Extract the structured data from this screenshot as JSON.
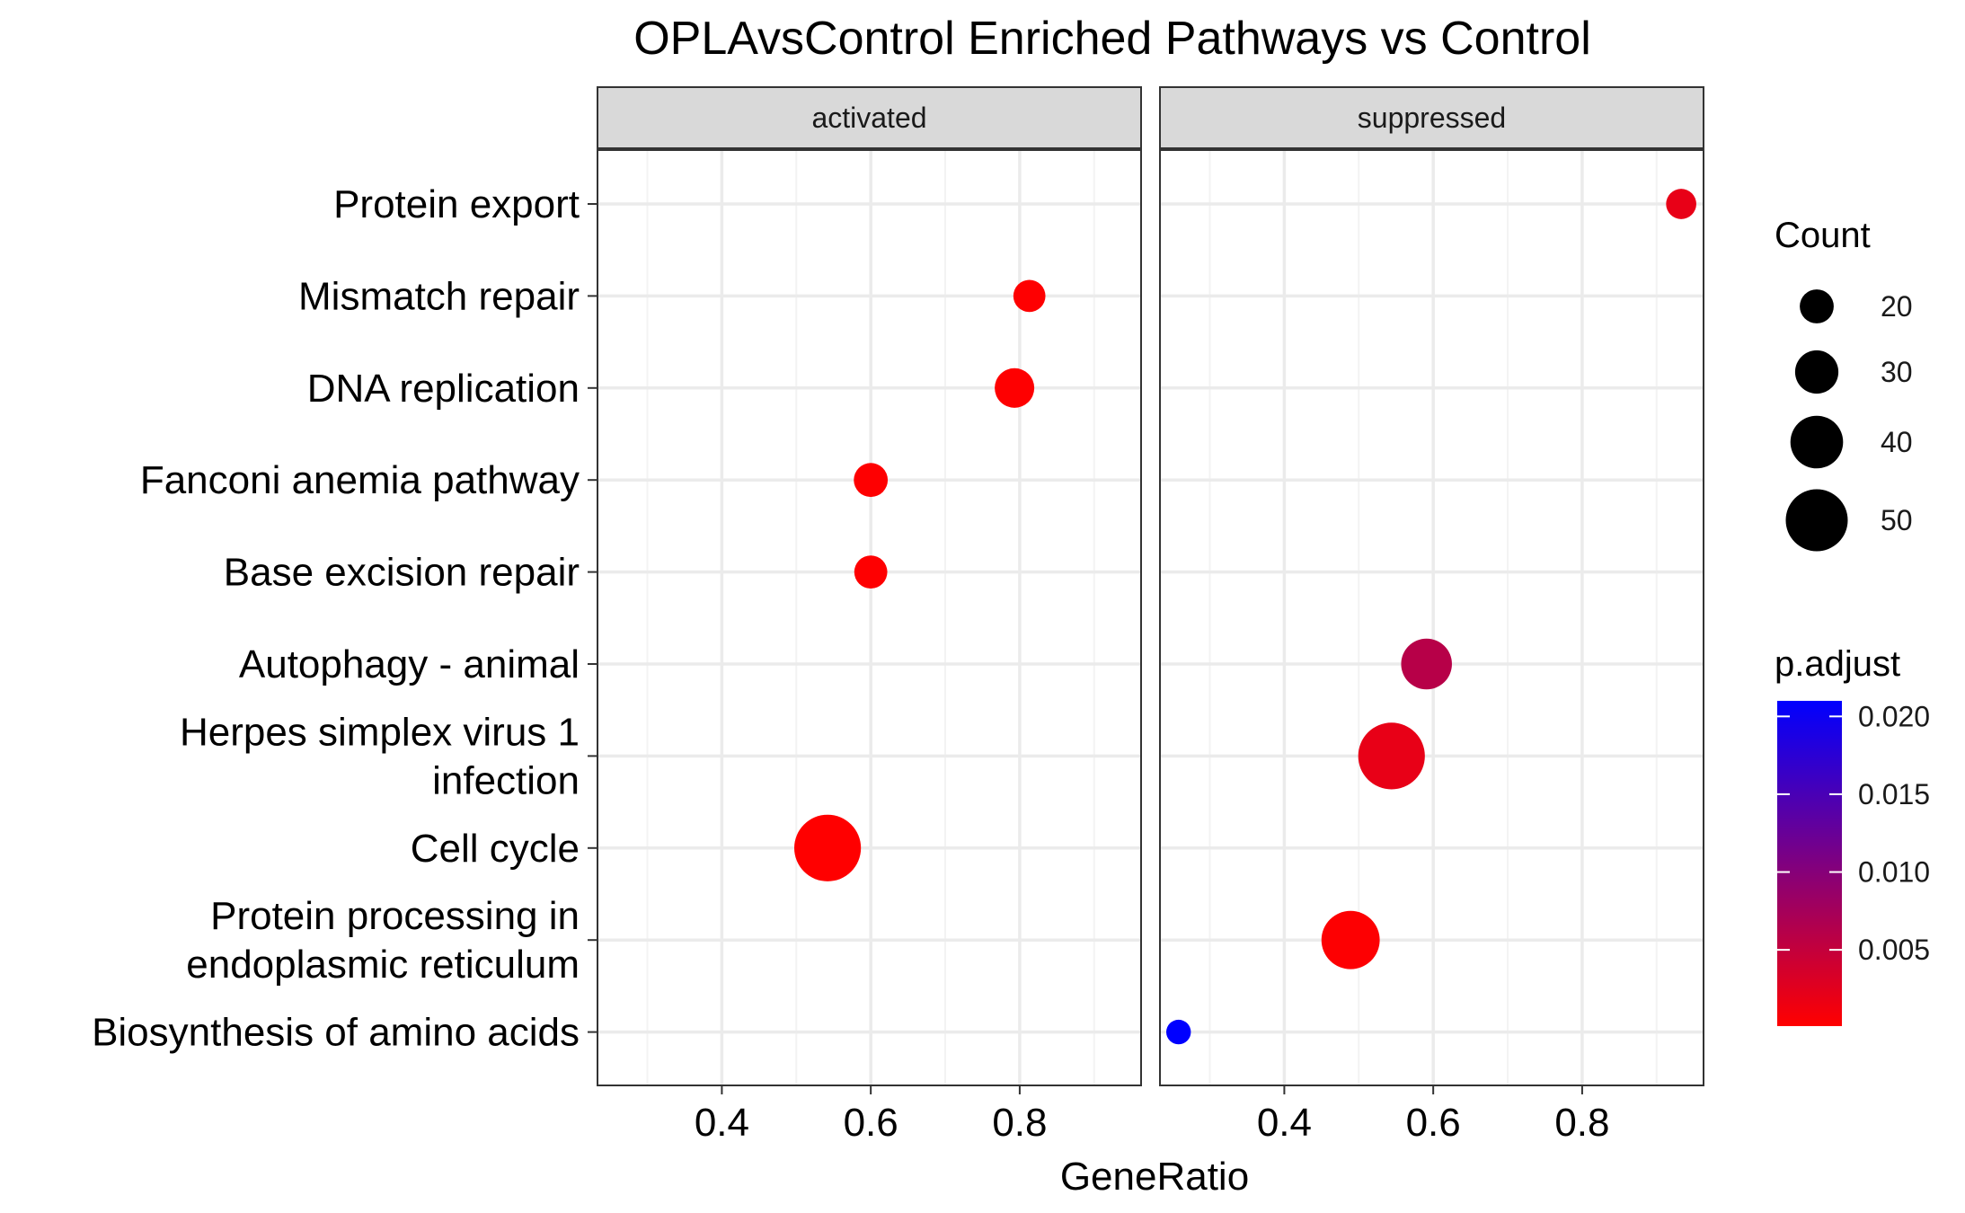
{
  "chart_data": {
    "type": "scatter",
    "title": "OPLAvsControl Enriched Pathways vs Control",
    "xlabel": "GeneRatio",
    "ylabel": "",
    "xlim": [
      0.233,
      0.963
    ],
    "x_ticks": [
      0.4,
      0.6,
      0.8
    ],
    "x_tick_labels": [
      "0.4",
      "0.6",
      "0.8"
    ],
    "grid": true,
    "facets": [
      {
        "name": "activated"
      },
      {
        "name": "suppressed"
      }
    ],
    "categories": [
      [
        "Protein export"
      ],
      [
        "Mismatch repair"
      ],
      [
        "DNA replication"
      ],
      [
        "Fanconi anemia pathway"
      ],
      [
        "Base excision repair"
      ],
      [
        "Autophagy - animal"
      ],
      [
        "Herpes simplex virus 1",
        "infection"
      ],
      [
        "Cell cycle"
      ],
      [
        "Protein processing in",
        "endoplasmic reticulum"
      ],
      [
        "Biosynthesis of amino acids"
      ]
    ],
    "points": [
      {
        "facet": "activated",
        "pathway": "Mismatch repair",
        "gene_ratio": 0.813,
        "count": 18,
        "p_adjust": 0.0002
      },
      {
        "facet": "activated",
        "pathway": "DNA replication",
        "gene_ratio": 0.793,
        "count": 26,
        "p_adjust": 0.0002
      },
      {
        "facet": "activated",
        "pathway": "Fanconi anemia pathway",
        "gene_ratio": 0.6,
        "count": 20,
        "p_adjust": 0.0002
      },
      {
        "facet": "activated",
        "pathway": "Base excision repair",
        "gene_ratio": 0.6,
        "count": 19,
        "p_adjust": 0.0002
      },
      {
        "facet": "activated",
        "pathway": "Cell cycle",
        "gene_ratio": 0.542,
        "count": 55,
        "p_adjust": 0.0001
      },
      {
        "facet": "suppressed",
        "pathway": "Protein export",
        "gene_ratio": 0.933,
        "count": 16,
        "p_adjust": 0.002
      },
      {
        "facet": "suppressed",
        "pathway": "Autophagy - animal",
        "gene_ratio": 0.591,
        "count": 38,
        "p_adjust": 0.006
      },
      {
        "facet": "suppressed",
        "pathway": "Herpes simplex virus 1 infection",
        "gene_ratio": 0.544,
        "count": 55,
        "p_adjust": 0.002
      },
      {
        "facet": "suppressed",
        "pathway": "Protein processing in endoplasmic reticulum",
        "gene_ratio": 0.489,
        "count": 46,
        "p_adjust": 0.0003
      },
      {
        "facet": "suppressed",
        "pathway": "Biosynthesis of amino acids",
        "gene_ratio": 0.258,
        "count": 10,
        "p_adjust": 0.021
      }
    ],
    "size_legend": {
      "title": "Count",
      "values": [
        20,
        30,
        40,
        50
      ],
      "labels": [
        "20",
        "30",
        "40",
        "50"
      ]
    },
    "color_legend": {
      "title": "p.adjust",
      "range": [
        0.0001,
        0.021
      ],
      "low_color": "#FF0000",
      "high_color": "#0000FF",
      "ticks": [
        0.02,
        0.015,
        0.01,
        0.005
      ],
      "tick_labels": [
        "0.020",
        "0.015",
        "0.010",
        "0.005"
      ]
    },
    "colors": {
      "strip_fill": "#D9D9D9",
      "panel_border": "#333333",
      "grid_major": "#EBEBEB",
      "grid_minor": "#F3F3F3",
      "text": "#1A1A1A",
      "tick_text": "#4D4D4D"
    }
  }
}
